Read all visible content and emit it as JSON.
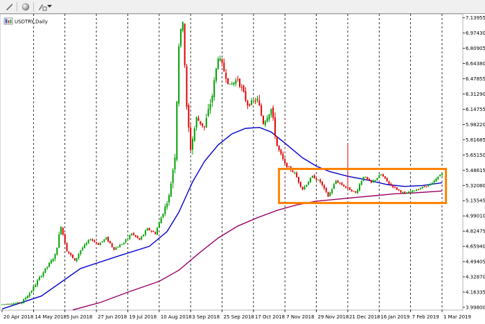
{
  "chart_data": {
    "type": "candlestick",
    "title": "USDTRY,Daily",
    "symbol": "USDTRY",
    "timeframe": "Daily",
    "y_ticks": [
      "7.13955",
      "6.97430",
      "6.80905",
      "6.64380",
      "6.47855",
      "6.31290",
      "6.14755",
      "5.98220",
      "5.81685",
      "5.65150",
      "5.48615",
      "5.32080",
      "5.15545",
      "4.99010",
      "4.82475",
      "4.65940",
      "4.49405",
      "4.32870",
      "4.16335",
      "3.99800"
    ],
    "x_ticks": [
      "20 Apr 2018",
      "14 May 2018",
      "5 Jun 2018",
      "27 Jun 2018",
      "19 Jul 2018",
      "10 Aug 2018",
      "3 Sep 2018",
      "25 Sep 2018",
      "17 Oct 2018",
      "7 Nov 2018",
      "29 Nov 2018",
      "21 Dec 2018",
      "16 Jan 2019",
      "7 Feb 2019",
      "1 Mar 2019"
    ],
    "ylim": [
      3.99,
      7.16
    ],
    "grid": "vertical dashed lines at date ticks",
    "price_path": [
      [
        0,
        4.03
      ],
      [
        10,
        4.05
      ],
      [
        15,
        4.18
      ],
      [
        20,
        4.35
      ],
      [
        27,
        4.56
      ],
      [
        30,
        4.88
      ],
      [
        33,
        4.62
      ],
      [
        37,
        4.5
      ],
      [
        40,
        4.62
      ],
      [
        45,
        4.74
      ],
      [
        49,
        4.68
      ],
      [
        53,
        4.75
      ],
      [
        57,
        4.63
      ],
      [
        62,
        4.7
      ],
      [
        66,
        4.8
      ],
      [
        70,
        4.73
      ],
      [
        74,
        4.85
      ],
      [
        78,
        4.8
      ],
      [
        85,
        5.2
      ],
      [
        88,
        5.65
      ],
      [
        90,
        6.85
      ],
      [
        92,
        7.12
      ],
      [
        94,
        6.15
      ],
      [
        96,
        5.72
      ],
      [
        99,
        6.05
      ],
      [
        103,
        5.95
      ],
      [
        107,
        6.3
      ],
      [
        110,
        6.72
      ],
      [
        112,
        6.62
      ],
      [
        116,
        6.4
      ],
      [
        120,
        6.48
      ],
      [
        125,
        6.2
      ],
      [
        130,
        6.25
      ],
      [
        133,
        6.0
      ],
      [
        137,
        6.15
      ],
      [
        140,
        5.75
      ],
      [
        144,
        5.55
      ],
      [
        149,
        5.45
      ],
      [
        153,
        5.28
      ],
      [
        158,
        5.42
      ],
      [
        162,
        5.36
      ],
      [
        166,
        5.2
      ],
      [
        170,
        5.37
      ],
      [
        175,
        5.3
      ],
      [
        180,
        5.24
      ],
      [
        184,
        5.42
      ],
      [
        188,
        5.35
      ],
      [
        193,
        5.44
      ],
      [
        197,
        5.34
      ],
      [
        201,
        5.28
      ],
      [
        205,
        5.23
      ],
      [
        209,
        5.26
      ],
      [
        214,
        5.3
      ],
      [
        219,
        5.34
      ],
      [
        224,
        5.46
      ]
    ],
    "spikes": [
      {
        "date": "21 Dec 2018",
        "high": 5.78
      }
    ],
    "moving_averages": [
      {
        "color": "#0000cc",
        "values": [
          [
            0,
            3.98
          ],
          [
            20,
            4.12
          ],
          [
            40,
            4.42
          ],
          [
            60,
            4.56
          ],
          [
            75,
            4.66
          ],
          [
            84,
            4.82
          ],
          [
            90,
            5.03
          ],
          [
            97,
            5.36
          ],
          [
            103,
            5.58
          ],
          [
            110,
            5.76
          ],
          [
            117,
            5.88
          ],
          [
            124,
            5.94
          ],
          [
            131,
            5.95
          ],
          [
            137,
            5.9
          ],
          [
            144,
            5.78
          ],
          [
            153,
            5.62
          ],
          [
            160,
            5.53
          ],
          [
            167,
            5.47
          ],
          [
            176,
            5.42
          ],
          [
            186,
            5.38
          ],
          [
            196,
            5.33
          ],
          [
            205,
            5.31
          ],
          [
            214,
            5.32
          ],
          [
            224,
            5.35
          ]
        ]
      },
      {
        "color": "#990066",
        "values": [
          [
            36,
            3.97
          ],
          [
            50,
            4.05
          ],
          [
            65,
            4.17
          ],
          [
            80,
            4.28
          ],
          [
            90,
            4.4
          ],
          [
            100,
            4.58
          ],
          [
            110,
            4.75
          ],
          [
            120,
            4.88
          ],
          [
            130,
            4.97
          ],
          [
            140,
            5.05
          ],
          [
            150,
            5.11
          ],
          [
            160,
            5.15
          ],
          [
            170,
            5.17
          ],
          [
            180,
            5.19
          ],
          [
            190,
            5.21
          ],
          [
            200,
            5.23
          ],
          [
            210,
            5.24
          ],
          [
            224,
            5.26
          ]
        ]
      }
    ],
    "annotations": [
      {
        "type": "rectangle",
        "color": "#ff8000",
        "from": "1 Nov 2018",
        "to": "5 Mar 2019",
        "price_top": 5.5,
        "price_bottom": 5.13
      }
    ]
  }
}
